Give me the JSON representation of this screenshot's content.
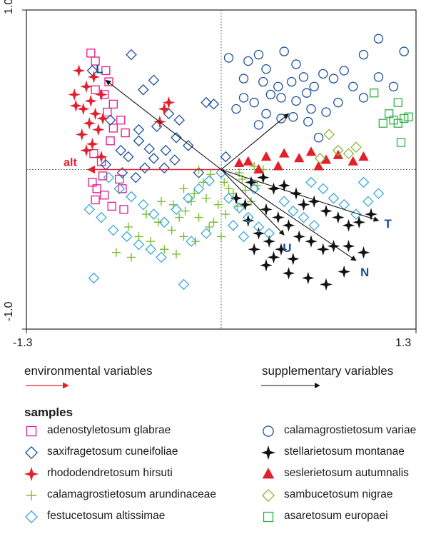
{
  "chart_data": {
    "type": "scatter",
    "xlim": [
      -1.3,
      1.3
    ],
    "ylim": [
      -1.0,
      1.0
    ],
    "x_tick_labels": [
      "-1.3",
      "1.3"
    ],
    "y_tick_labels": [
      "1.0",
      "-1.0"
    ],
    "origin_lines": true,
    "environmental_vectors": [
      {
        "name": "alt",
        "x": -0.89,
        "y": 0.0
      }
    ],
    "supplementary_vectors": [
      {
        "name": "L",
        "x": -0.77,
        "y": 0.56
      },
      {
        "name": "T",
        "x": 1.05,
        "y": -0.32
      },
      {
        "name": "N",
        "x": 0.9,
        "y": -0.57
      },
      {
        "name": "U",
        "x": 0.42,
        "y": -0.41
      },
      {
        "name": "",
        "x": 0.45,
        "y": 0.35
      }
    ],
    "series": [
      {
        "name": "adenostyletosum glabrae",
        "marker": "square",
        "color": "#e0198a",
        "points": [
          [
            -0.87,
            0.73
          ],
          [
            -0.84,
            0.68
          ],
          [
            -0.77,
            0.62
          ],
          [
            -0.75,
            0.55
          ],
          [
            -0.84,
            0.5
          ],
          [
            -0.78,
            0.47
          ],
          [
            -0.72,
            0.41
          ],
          [
            -0.76,
            0.36
          ],
          [
            -0.67,
            0.31
          ],
          [
            -0.72,
            0.26
          ],
          [
            -0.64,
            0.23
          ],
          [
            -0.74,
            0.18
          ],
          [
            -0.85,
            0.1
          ],
          [
            -0.8,
            0.05
          ],
          [
            -0.79,
            -0.04
          ],
          [
            -0.68,
            -0.06
          ],
          [
            -0.86,
            -0.08
          ],
          [
            -0.83,
            -0.12
          ],
          [
            -0.78,
            -0.16
          ],
          [
            -0.66,
            -0.12
          ],
          [
            -0.84,
            -0.19
          ],
          [
            -0.73,
            -0.23
          ],
          [
            -0.65,
            -0.25
          ]
        ]
      },
      {
        "name": "saxifragetosum cuneifoliae",
        "marker": "diamond",
        "color": "#1a4f9c",
        "points": [
          [
            -0.6,
            0.72
          ],
          [
            -0.86,
            0.62
          ],
          [
            -0.45,
            0.56
          ],
          [
            -0.52,
            0.5
          ],
          [
            -0.1,
            0.42
          ],
          [
            -0.05,
            0.41
          ],
          [
            -0.74,
            0.31
          ],
          [
            -0.35,
            0.35
          ],
          [
            -0.28,
            0.31
          ],
          [
            -0.55,
            0.25
          ],
          [
            -0.43,
            0.27
          ],
          [
            -0.3,
            0.2
          ],
          [
            -0.55,
            0.18
          ],
          [
            -0.22,
            0.15
          ],
          [
            -0.67,
            0.12
          ],
          [
            -0.48,
            0.13
          ],
          [
            -0.37,
            0.12
          ],
          [
            -0.62,
            0.08
          ],
          [
            -0.45,
            0.07
          ],
          [
            -0.31,
            0.06
          ],
          [
            -0.77,
            0.03
          ],
          [
            -0.51,
            0.01
          ],
          [
            -0.38,
            0.01
          ],
          [
            0.03,
            0.08
          ],
          [
            -0.66,
            -0.02
          ],
          [
            -0.57,
            -0.05
          ],
          [
            -0.15,
            -0.02
          ]
        ]
      },
      {
        "name": "rhododendretosum hirsuti",
        "marker": "star4",
        "color": "#e2202c",
        "points": [
          [
            -0.95,
            0.62
          ],
          [
            -0.85,
            0.58
          ],
          [
            -0.9,
            0.52
          ],
          [
            -0.98,
            0.47
          ],
          [
            -0.87,
            0.43
          ],
          [
            -0.8,
            0.47
          ],
          [
            -0.92,
            0.38
          ],
          [
            -0.84,
            0.35
          ],
          [
            -0.97,
            0.4
          ],
          [
            -0.79,
            0.32
          ],
          [
            -0.88,
            0.29
          ],
          [
            -0.93,
            0.22
          ],
          [
            -0.82,
            0.25
          ],
          [
            -0.86,
            0.16
          ],
          [
            -0.9,
            0.12
          ],
          [
            -0.8,
            0.08
          ],
          [
            -0.35,
            0.42
          ],
          [
            -0.38,
            0.38
          ],
          [
            -0.41,
            0.3
          ]
        ]
      },
      {
        "name": "calamagrostietosum arundinaceae",
        "marker": "plus",
        "color": "#7cbd32",
        "points": [
          [
            -0.15,
            0.0
          ],
          [
            -0.07,
            -0.03
          ],
          [
            0.02,
            -0.08
          ],
          [
            0.12,
            -0.02
          ],
          [
            0.22,
            0.02
          ],
          [
            0.28,
            0.0
          ],
          [
            -0.25,
            -0.12
          ],
          [
            -0.18,
            -0.15
          ],
          [
            -0.1,
            -0.18
          ],
          [
            -0.02,
            -0.22
          ],
          [
            0.08,
            -0.15
          ],
          [
            0.16,
            -0.13
          ],
          [
            0.24,
            -0.1
          ],
          [
            -0.4,
            -0.2
          ],
          [
            -0.32,
            -0.22
          ],
          [
            -0.24,
            -0.26
          ],
          [
            -0.15,
            -0.3
          ],
          [
            -0.05,
            -0.33
          ],
          [
            0.03,
            -0.28
          ],
          [
            0.11,
            -0.23
          ],
          [
            0.2,
            -0.2
          ],
          [
            -0.5,
            -0.28
          ],
          [
            -0.42,
            -0.33
          ],
          [
            -0.33,
            -0.38
          ],
          [
            -0.25,
            -0.42
          ],
          [
            -0.17,
            -0.45
          ],
          [
            -0.08,
            -0.36
          ],
          [
            0.0,
            -0.42
          ],
          [
            -0.62,
            -0.36
          ],
          [
            -0.55,
            -0.42
          ],
          [
            -0.47,
            -0.45
          ],
          [
            -0.38,
            -0.5
          ],
          [
            -0.3,
            -0.53
          ],
          [
            -0.7,
            -0.52
          ],
          [
            -0.6,
            -0.55
          ],
          [
            -0.2,
            -0.2
          ],
          [
            -0.12,
            -0.08
          ],
          [
            0.05,
            -0.12
          ],
          [
            0.14,
            -0.06
          ],
          [
            -0.28,
            -0.3
          ]
        ]
      },
      {
        "name": "calamagrostietosum variae",
        "marker": "circle",
        "color": "#1a4f9c",
        "points": [
          [
            0.05,
            0.7
          ],
          [
            0.18,
            0.68
          ],
          [
            0.25,
            0.72
          ],
          [
            0.3,
            0.63
          ],
          [
            0.42,
            0.74
          ],
          [
            0.5,
            0.66
          ],
          [
            0.47,
            0.55
          ],
          [
            0.38,
            0.52
          ],
          [
            0.28,
            0.55
          ],
          [
            0.15,
            0.57
          ],
          [
            0.33,
            0.47
          ],
          [
            0.4,
            0.45
          ],
          [
            0.55,
            0.58
          ],
          [
            0.62,
            0.52
          ],
          [
            0.68,
            0.6
          ],
          [
            0.75,
            0.57
          ],
          [
            0.82,
            0.62
          ],
          [
            0.95,
            0.72
          ],
          [
            1.05,
            0.82
          ],
          [
            1.22,
            0.74
          ],
          [
            0.15,
            0.45
          ],
          [
            0.22,
            0.42
          ],
          [
            0.1,
            0.38
          ],
          [
            0.3,
            0.35
          ],
          [
            0.5,
            0.43
          ],
          [
            0.57,
            0.48
          ],
          [
            0.6,
            0.38
          ],
          [
            0.4,
            0.32
          ],
          [
            0.48,
            0.33
          ],
          [
            0.58,
            0.3
          ],
          [
            0.7,
            0.36
          ],
          [
            0.78,
            0.42
          ],
          [
            0.88,
            0.52
          ],
          [
            0.95,
            0.45
          ],
          [
            1.05,
            0.58
          ],
          [
            1.15,
            0.52
          ],
          [
            0.25,
            0.28
          ],
          [
            0.65,
            0.2
          ]
        ]
      },
      {
        "name": "stellarietosum montanae",
        "marker": "star4",
        "color": "#111111",
        "points": [
          [
            0.2,
            -0.08
          ],
          [
            0.28,
            -0.05
          ],
          [
            0.35,
            -0.12
          ],
          [
            0.42,
            -0.1
          ],
          [
            0.5,
            -0.15
          ],
          [
            0.55,
            -0.22
          ],
          [
            0.62,
            -0.2
          ],
          [
            0.7,
            -0.26
          ],
          [
            0.78,
            -0.3
          ],
          [
            0.85,
            -0.35
          ],
          [
            0.92,
            -0.33
          ],
          [
            1.0,
            -0.28
          ],
          [
            0.3,
            -0.25
          ],
          [
            0.38,
            -0.3
          ],
          [
            0.45,
            -0.35
          ],
          [
            0.52,
            -0.42
          ],
          [
            0.6,
            -0.45
          ],
          [
            0.68,
            -0.5
          ],
          [
            0.75,
            -0.48
          ],
          [
            0.85,
            -0.48
          ],
          [
            0.95,
            -0.52
          ],
          [
            0.25,
            -0.4
          ],
          [
            0.32,
            -0.45
          ],
          [
            0.4,
            -0.5
          ],
          [
            0.48,
            -0.56
          ],
          [
            0.3,
            -0.6
          ],
          [
            0.45,
            -0.65
          ],
          [
            0.58,
            -0.68
          ],
          [
            0.7,
            -0.72
          ],
          [
            0.82,
            -0.64
          ],
          [
            0.18,
            -0.32
          ],
          [
            0.22,
            -0.5
          ],
          [
            0.35,
            -0.55
          ],
          [
            0.1,
            -0.18
          ],
          [
            0.16,
            -0.22
          ]
        ]
      },
      {
        "name": "seslerietosum autumnalis",
        "marker": "triangle",
        "color": "#e2202c",
        "points": [
          [
            0.18,
            0.05
          ],
          [
            0.3,
            0.08
          ],
          [
            0.42,
            0.1
          ],
          [
            0.52,
            0.07
          ],
          [
            0.6,
            0.11
          ],
          [
            0.7,
            0.06
          ],
          [
            0.78,
            0.09
          ],
          [
            0.88,
            0.05
          ],
          [
            0.95,
            0.08
          ],
          [
            0.25,
            0.0
          ],
          [
            0.38,
            0.02
          ],
          [
            0.65,
            0.02
          ],
          [
            0.12,
            0.04
          ]
        ]
      },
      {
        "name": "sambucetosum nigrae",
        "marker": "diamond",
        "color": "#8db53a",
        "points": [
          [
            0.72,
            0.22
          ],
          [
            0.78,
            0.12
          ],
          [
            0.85,
            0.1
          ],
          [
            0.9,
            0.14
          ],
          [
            0.66,
            0.07
          ]
        ]
      },
      {
        "name": "festucetosum altissimae",
        "marker": "diamond",
        "color": "#3aa8dc",
        "points": [
          [
            -0.75,
            -0.05
          ],
          [
            -0.68,
            -0.12
          ],
          [
            -0.6,
            -0.17
          ],
          [
            -0.52,
            -0.22
          ],
          [
            -0.45,
            -0.28
          ],
          [
            -0.38,
            -0.33
          ],
          [
            -0.3,
            -0.25
          ],
          [
            -0.22,
            -0.18
          ],
          [
            -0.15,
            -0.12
          ],
          [
            -0.08,
            -0.07
          ],
          [
            0.0,
            -0.02
          ],
          [
            -0.72,
            -0.38
          ],
          [
            -0.63,
            -0.42
          ],
          [
            -0.55,
            -0.47
          ],
          [
            -0.47,
            -0.5
          ],
          [
            -0.4,
            -0.55
          ],
          [
            -0.8,
            -0.3
          ],
          [
            -0.88,
            -0.25
          ],
          [
            0.05,
            -0.18
          ],
          [
            0.12,
            -0.24
          ],
          [
            0.18,
            -0.3
          ],
          [
            0.25,
            -0.36
          ],
          [
            0.32,
            -0.4
          ],
          [
            0.08,
            -0.35
          ],
          [
            0.15,
            -0.42
          ],
          [
            0.6,
            -0.08
          ],
          [
            0.68,
            -0.12
          ],
          [
            0.75,
            -0.18
          ],
          [
            0.82,
            -0.22
          ],
          [
            0.9,
            -0.28
          ],
          [
            0.98,
            -0.2
          ],
          [
            1.05,
            -0.15
          ],
          [
            0.55,
            -0.3
          ],
          [
            0.62,
            -0.35
          ],
          [
            0.95,
            -0.08
          ],
          [
            -0.85,
            -0.68
          ],
          [
            -0.25,
            -0.72
          ],
          [
            -0.2,
            -0.45
          ],
          [
            -0.1,
            -0.4
          ],
          [
            0.42,
            -0.2
          ],
          [
            0.48,
            -0.26
          ],
          [
            0.22,
            -0.12
          ]
        ]
      },
      {
        "name": "asaretosum europaei",
        "marker": "square",
        "color": "#2fae48",
        "points": [
          [
            1.02,
            0.48
          ],
          [
            1.18,
            0.42
          ],
          [
            1.12,
            0.35
          ],
          [
            1.22,
            0.32
          ],
          [
            1.25,
            0.33
          ],
          [
            1.08,
            0.29
          ],
          [
            1.18,
            0.29
          ],
          [
            1.15,
            0.31
          ],
          [
            1.2,
            0.17
          ]
        ]
      }
    ]
  },
  "legend": {
    "environmental_label": "environmental variables",
    "supplementary_label": "supplementary variables",
    "samples_title": "samples",
    "env_arrow_color": "#e2202c",
    "supp_arrow_color": "#111111"
  }
}
